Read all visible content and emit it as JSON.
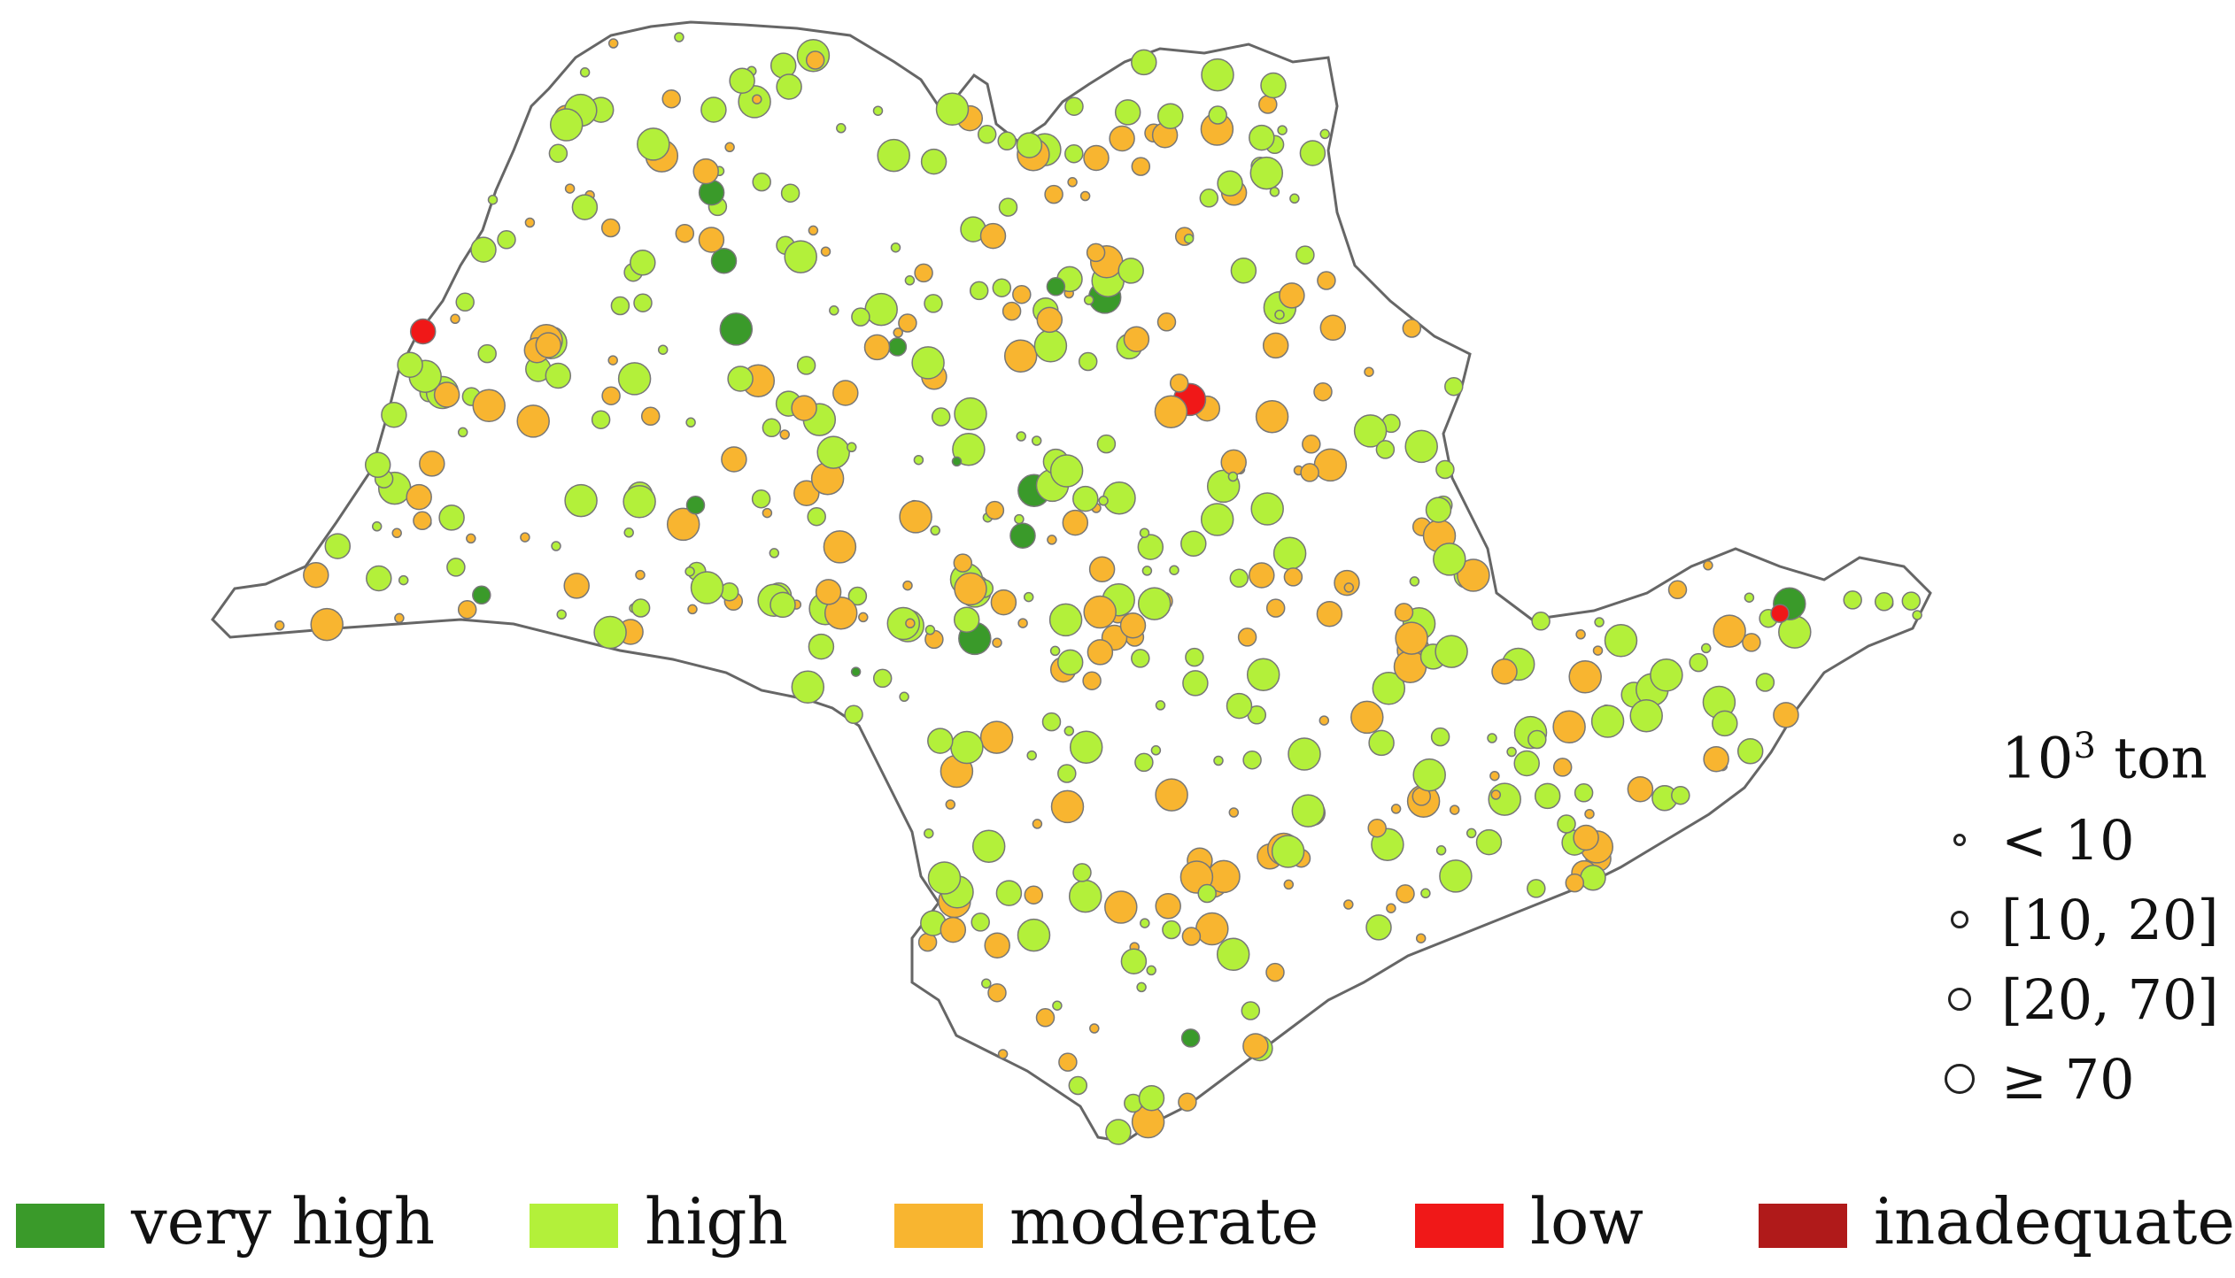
{
  "size_legend": {
    "unit_base": "10",
    "unit_exp": "3",
    "unit_suffix": " ton",
    "classes": [
      "< 10",
      "[10, 20]",
      "[20, 70]",
      "≥ 70"
    ]
  },
  "class_legend": [
    {
      "name": "very high",
      "color": "#3a9a2a"
    },
    {
      "name": "high",
      "color": "#b3f03a"
    },
    {
      "name": "moderate",
      "color": "#f8b530"
    },
    {
      "name": "low",
      "color": "#f01818"
    },
    {
      "name": "inadequate",
      "color": "#b01a1a"
    }
  ],
  "map": {
    "fill": "#ffffff",
    "stroke": "#666666"
  }
}
